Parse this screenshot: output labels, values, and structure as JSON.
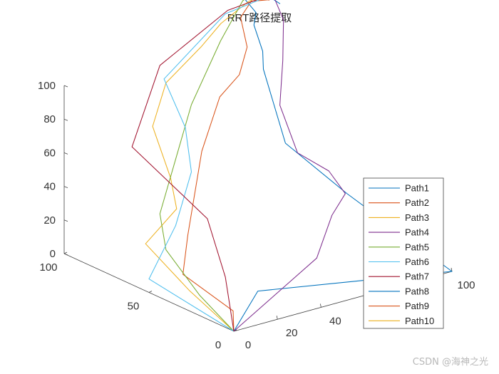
{
  "chart_data": {
    "type": "line",
    "subtype": "3d-path",
    "title": "RRT路径提取",
    "xlabel": "",
    "ylabel": "",
    "zlabel": "",
    "xlim": [
      0,
      100
    ],
    "ylim": [
      0,
      100
    ],
    "zlim": [
      0,
      100
    ],
    "x_ticks": [
      "0",
      "20",
      "40",
      "100"
    ],
    "y_ticks": [
      "0",
      "50",
      "100"
    ],
    "z_ticks": [
      "0",
      "20",
      "40",
      "60",
      "80",
      "100"
    ],
    "grid": false,
    "legend_position": "bottom-right",
    "series": [
      {
        "name": "Path1",
        "color": "#0072BD",
        "points": [
          [
            0,
            0,
            0
          ],
          [
            11,
            0,
            20
          ],
          [
            100,
            0,
            0
          ],
          [
            65,
            17,
            51
          ],
          [
            61,
            48,
            68
          ],
          [
            82,
            88,
            86
          ],
          [
            91,
            100,
            88
          ],
          [
            87,
            100,
            105
          ],
          [
            88,
            100,
            112
          ],
          [
            88,
            108,
            118
          ],
          [
            91,
            106,
            120
          ],
          [
            97,
            98,
            125
          ],
          [
            95,
            97,
            133
          ],
          [
            93,
            93,
            128
          ],
          [
            90,
            94,
            123
          ],
          [
            92,
            91,
            120
          ]
        ]
      },
      {
        "name": "Path2",
        "color": "#D95319",
        "points": [
          [
            0,
            0,
            0
          ],
          [
            2,
            3,
            10
          ],
          [
            0,
            30,
            20
          ],
          [
            10,
            40,
            35
          ],
          [
            32,
            60,
            68
          ],
          [
            48,
            70,
            90
          ],
          [
            57,
            70,
            100
          ],
          [
            66,
            77,
            110
          ],
          [
            70,
            86,
            122
          ],
          [
            78,
            90,
            127
          ],
          [
            86,
            90,
            125
          ],
          [
            88,
            92,
            124
          ],
          [
            90,
            95,
            121
          ],
          [
            92,
            100,
            120
          ]
        ]
      },
      {
        "name": "Path3",
        "color": "#EDB120",
        "points": [
          [
            0,
            0,
            0
          ],
          [
            0,
            26,
            12
          ],
          [
            0,
            52,
            28
          ],
          [
            15,
            53,
            43
          ],
          [
            20,
            63,
            55
          ],
          [
            25,
            80,
            76
          ],
          [
            35,
            85,
            96
          ],
          [
            55,
            90,
            108
          ],
          [
            68,
            95,
            115
          ],
          [
            82,
            97,
            122
          ],
          [
            93,
            100,
            122
          ]
        ]
      },
      {
        "name": "Path4",
        "color": "#7E2F8E",
        "points": [
          [
            0,
            0,
            0
          ],
          [
            38,
            0,
            30
          ],
          [
            45,
            0,
            53
          ],
          [
            55,
            5,
            60
          ],
          [
            56,
            16,
            68
          ],
          [
            51,
            28,
            75
          ],
          [
            60,
            50,
            90
          ],
          [
            73,
            65,
            105
          ],
          [
            85,
            80,
            118
          ],
          [
            92,
            95,
            123
          ],
          [
            93,
            100,
            120
          ]
        ]
      },
      {
        "name": "Path5",
        "color": "#77AC30",
        "points": [
          [
            0,
            0,
            0
          ],
          [
            0,
            20,
            12
          ],
          [
            0,
            40,
            30
          ],
          [
            5,
            50,
            45
          ],
          [
            35,
            70,
            90
          ],
          [
            60,
            85,
            112
          ],
          [
            78,
            95,
            125
          ],
          [
            86,
            98,
            125
          ],
          [
            92,
            100,
            120
          ]
        ]
      },
      {
        "name": "Path6",
        "color": "#4DBEEE",
        "points": [
          [
            0,
            0,
            0
          ],
          [
            0,
            50,
            8
          ],
          [
            20,
            60,
            28
          ],
          [
            35,
            70,
            50
          ],
          [
            40,
            80,
            70
          ],
          [
            38,
            90,
            95
          ],
          [
            70,
            95,
            120
          ],
          [
            95,
            100,
            120
          ]
        ]
      },
      {
        "name": "Path7",
        "color": "#A2142F",
        "points": [
          [
            0,
            0,
            0
          ],
          [
            0,
            5,
            30
          ],
          [
            5,
            22,
            55
          ],
          [
            0,
            60,
            82
          ],
          [
            40,
            95,
            100
          ],
          [
            75,
            100,
            118
          ],
          [
            92,
            100,
            120
          ]
        ]
      },
      {
        "name": "Path8",
        "color": "#0072BD",
        "points": []
      },
      {
        "name": "Path9",
        "color": "#D95319",
        "points": []
      },
      {
        "name": "Path10",
        "color": "#EDB120",
        "points": []
      }
    ]
  },
  "watermark": "CSDN @海神之光"
}
